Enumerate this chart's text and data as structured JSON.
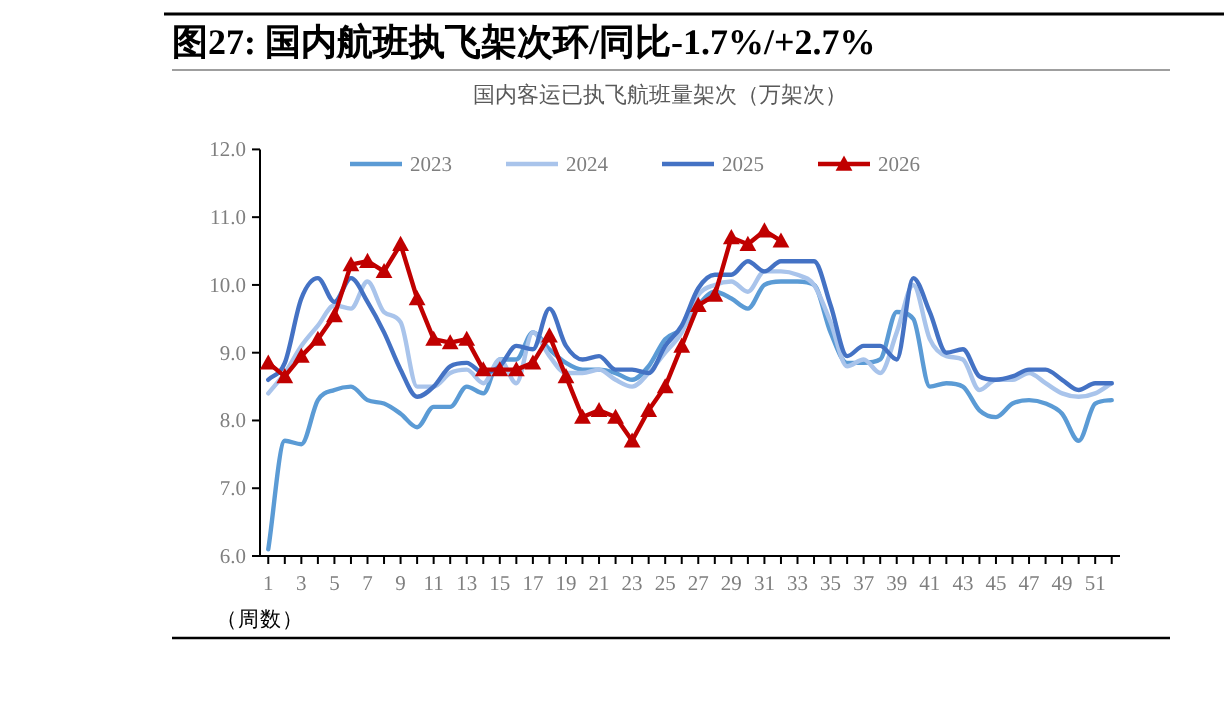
{
  "chart_data": {
    "type": "line",
    "title": "图27:  国内航班执飞架次环/同比-1.7%/+2.7%",
    "subtitle": "国内客运已执飞航班量架次（万架次）",
    "xlabel": "（周数）",
    "x": [
      1,
      2,
      3,
      4,
      5,
      6,
      7,
      8,
      9,
      10,
      11,
      12,
      13,
      14,
      15,
      16,
      17,
      18,
      19,
      20,
      21,
      22,
      23,
      24,
      25,
      26,
      27,
      28,
      29,
      30,
      31,
      32,
      33,
      34,
      35,
      36,
      37,
      38,
      39,
      40,
      41,
      42,
      43,
      44,
      45,
      46,
      47,
      48,
      49,
      50,
      51,
      52
    ],
    "xlim": [
      0.5,
      52.5
    ],
    "xticks": [
      {
        "value": 1,
        "label": "1"
      },
      {
        "value": 2,
        "label": null
      },
      {
        "value": 3,
        "label": "3"
      },
      {
        "value": 4,
        "label": null
      },
      {
        "value": 5,
        "label": "5"
      },
      {
        "value": 6,
        "label": null
      },
      {
        "value": 7,
        "label": "7"
      },
      {
        "value": 8,
        "label": null
      },
      {
        "value": 9,
        "label": "9"
      },
      {
        "value": 10,
        "label": null
      },
      {
        "value": 11,
        "label": "11"
      },
      {
        "value": 12,
        "label": null
      },
      {
        "value": 13,
        "label": "13"
      },
      {
        "value": 14,
        "label": null
      },
      {
        "value": 15,
        "label": "15"
      },
      {
        "value": 16,
        "label": null
      },
      {
        "value": 17,
        "label": "17"
      },
      {
        "value": 18,
        "label": null
      },
      {
        "value": 19,
        "label": "19"
      },
      {
        "value": 20,
        "label": null
      },
      {
        "value": 21,
        "label": "21"
      },
      {
        "value": 22,
        "label": null
      },
      {
        "value": 23,
        "label": "23"
      },
      {
        "value": 24,
        "label": null
      },
      {
        "value": 25,
        "label": "25"
      },
      {
        "value": 26,
        "label": null
      },
      {
        "value": 27,
        "label": "27"
      },
      {
        "value": 28,
        "label": null
      },
      {
        "value": 29,
        "label": "29"
      },
      {
        "value": 30,
        "label": null
      },
      {
        "value": 31,
        "label": "31"
      },
      {
        "value": 32,
        "label": null
      },
      {
        "value": 33,
        "label": "33"
      },
      {
        "value": 34,
        "label": null
      },
      {
        "value": 35,
        "label": "35"
      },
      {
        "value": 36,
        "label": null
      },
      {
        "value": 37,
        "label": "37"
      },
      {
        "value": 38,
        "label": null
      },
      {
        "value": 39,
        "label": "39"
      },
      {
        "value": 40,
        "label": null
      },
      {
        "value": 41,
        "label": "41"
      },
      {
        "value": 42,
        "label": null
      },
      {
        "value": 43,
        "label": "43"
      },
      {
        "value": 44,
        "label": null
      },
      {
        "value": 45,
        "label": "45"
      },
      {
        "value": 46,
        "label": null
      },
      {
        "value": 47,
        "label": "47"
      },
      {
        "value": 48,
        "label": null
      },
      {
        "value": 49,
        "label": "49"
      },
      {
        "value": 50,
        "label": null
      },
      {
        "value": 51,
        "label": "51"
      },
      {
        "value": 52,
        "label": null
      }
    ],
    "ylim": [
      6,
      12
    ],
    "yticks": [
      {
        "value": 6,
        "label": "6.0"
      },
      {
        "value": 7,
        "label": "7.0"
      },
      {
        "value": 8,
        "label": "8.0"
      },
      {
        "value": 9,
        "label": "9.0"
      },
      {
        "value": 10,
        "label": "10.0"
      },
      {
        "value": 11,
        "label": "11.0"
      },
      {
        "value": 12,
        "label": "12.0"
      }
    ],
    "grid": false,
    "legend": "top",
    "series": [
      {
        "name": "2023",
        "color": "#5b9bd5",
        "marker": "none",
        "values": [
          6.1,
          7.7,
          7.65,
          8.3,
          8.45,
          8.5,
          8.3,
          8.25,
          8.1,
          7.9,
          8.2,
          8.2,
          8.5,
          8.4,
          8.9,
          8.9,
          9.3,
          9.05,
          8.85,
          8.75,
          8.75,
          8.7,
          8.6,
          8.8,
          9.2,
          9.35,
          9.7,
          9.9,
          9.8,
          9.65,
          10.0,
          10.05,
          10.05,
          10.0,
          9.3,
          8.85,
          8.85,
          8.9,
          9.6,
          9.5,
          8.5,
          8.55,
          8.5,
          8.15,
          8.05,
          8.25,
          8.3,
          8.25,
          8.1,
          7.7,
          8.25,
          8.3
        ]
      },
      {
        "name": "2024",
        "color": "#a9c4eb",
        "marker": "none",
        "values": [
          8.4,
          8.7,
          9.1,
          9.4,
          9.7,
          9.65,
          10.05,
          9.6,
          9.45,
          8.5,
          8.5,
          8.7,
          8.75,
          8.55,
          8.9,
          8.55,
          9.3,
          8.95,
          8.7,
          8.7,
          8.75,
          8.6,
          8.5,
          8.7,
          9.0,
          9.3,
          9.85,
          10.0,
          10.05,
          9.9,
          10.2,
          10.2,
          10.15,
          10.0,
          9.45,
          8.8,
          8.9,
          8.7,
          9.3,
          10.0,
          9.2,
          8.95,
          8.9,
          8.45,
          8.6,
          8.6,
          8.7,
          8.55,
          8.4,
          8.35,
          8.4,
          8.55
        ]
      },
      {
        "name": "2025",
        "color": "#4472c4",
        "marker": "none",
        "values": [
          8.6,
          8.85,
          9.8,
          10.1,
          9.75,
          10.1,
          9.75,
          9.3,
          8.75,
          8.35,
          8.5,
          8.8,
          8.85,
          8.7,
          8.8,
          9.1,
          9.05,
          9.65,
          9.1,
          8.9,
          8.95,
          8.75,
          8.75,
          8.7,
          9.1,
          9.4,
          9.95,
          10.15,
          10.15,
          10.35,
          10.2,
          10.35,
          10.35,
          10.35,
          9.7,
          8.95,
          9.1,
          9.1,
          8.9,
          10.1,
          9.6,
          9.0,
          9.05,
          8.65,
          8.6,
          8.65,
          8.75,
          8.75,
          8.6,
          8.45,
          8.55,
          8.55
        ]
      },
      {
        "name": "2026",
        "color": "#c00000",
        "marker": "triangle",
        "values": [
          8.85,
          8.65,
          8.95,
          9.2,
          9.55,
          10.3,
          10.35,
          10.2,
          10.6,
          9.8,
          9.2,
          9.15,
          9.2,
          8.75,
          8.75,
          8.75,
          8.85,
          9.25,
          8.65,
          8.05,
          8.15,
          8.05,
          7.7,
          8.15,
          8.5,
          9.1,
          9.7,
          9.85,
          10.7,
          10.6,
          10.8,
          10.65,
          null,
          null,
          null,
          null,
          null,
          null,
          null,
          null,
          null,
          null,
          null,
          null,
          null,
          null,
          null,
          null,
          null,
          null,
          null,
          null
        ]
      }
    ]
  }
}
